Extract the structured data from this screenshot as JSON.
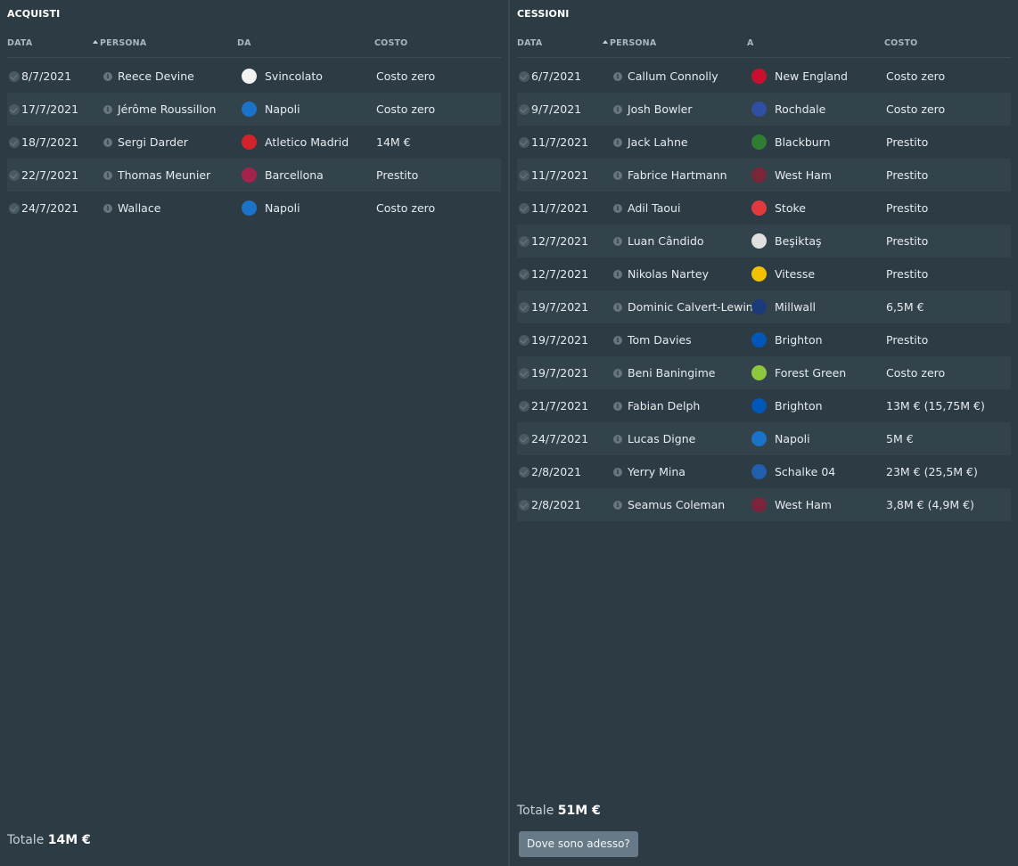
{
  "acquisti": {
    "title": "ACQUISTI",
    "headers": {
      "data": "DATA",
      "persona": "PERSONA",
      "club": "DA",
      "costo": "COSTO"
    },
    "rows": [
      {
        "date": "8/7/2021",
        "person": "Reece Devine",
        "club": "Svincolato",
        "crest": "#f2f2f2",
        "cost": "Costo zero"
      },
      {
        "date": "17/7/2021",
        "person": "Jérôme Roussillon",
        "club": "Napoli",
        "crest": "#1a73c9",
        "cost": "Costo zero"
      },
      {
        "date": "18/7/2021",
        "person": "Sergi Darder",
        "club": "Atletico Madrid",
        "crest": "#d2232a",
        "cost": "14M €"
      },
      {
        "date": "22/7/2021",
        "person": "Thomas Meunier",
        "club": "Barcellona",
        "crest": "#a3234c",
        "cost": "Prestito"
      },
      {
        "date": "24/7/2021",
        "person": "Wallace",
        "club": "Napoli",
        "crest": "#1a73c9",
        "cost": "Costo zero"
      }
    ],
    "total_label": "Totale",
    "total_value": "14M €"
  },
  "cessioni": {
    "title": "CESSIONI",
    "headers": {
      "data": "DATA",
      "persona": "PERSONA",
      "club": "A",
      "costo": "COSTO"
    },
    "rows": [
      {
        "date": "6/7/2021",
        "person": "Callum Connolly",
        "club": "New England",
        "crest": "#c8102e",
        "cost": "Costo zero"
      },
      {
        "date": "9/7/2021",
        "person": "Josh Bowler",
        "club": "Rochdale",
        "crest": "#2e4fa3",
        "cost": "Costo zero"
      },
      {
        "date": "11/7/2021",
        "person": "Jack Lahne",
        "club": "Blackburn",
        "crest": "#2e7d32",
        "cost": "Prestito"
      },
      {
        "date": "11/7/2021",
        "person": "Fabrice Hartmann",
        "club": "West Ham",
        "crest": "#7a263a",
        "cost": "Prestito"
      },
      {
        "date": "11/7/2021",
        "person": "Adil Taoui",
        "club": "Stoke",
        "crest": "#e03a3e",
        "cost": "Prestito"
      },
      {
        "date": "12/7/2021",
        "person": "Luan Cândido",
        "club": "Beşiktaş",
        "crest": "#e0e0e0",
        "cost": "Prestito"
      },
      {
        "date": "12/7/2021",
        "person": "Nikolas Nartey",
        "club": "Vitesse",
        "crest": "#f2c200",
        "cost": "Prestito"
      },
      {
        "date": "19/7/2021",
        "person": "Dominic Calvert-Lewin",
        "club": "Millwall",
        "crest": "#1a3a7a",
        "cost": "6,5M €"
      },
      {
        "date": "19/7/2021",
        "person": "Tom Davies",
        "club": "Brighton",
        "crest": "#0057b8",
        "cost": "Prestito"
      },
      {
        "date": "19/7/2021",
        "person": "Beni Baningime",
        "club": "Forest Green",
        "crest": "#8dc63f",
        "cost": "Costo zero"
      },
      {
        "date": "21/7/2021",
        "person": "Fabian Delph",
        "club": "Brighton",
        "crest": "#0057b8",
        "cost": "13M € (15,75M €)"
      },
      {
        "date": "24/7/2021",
        "person": "Lucas Digne",
        "club": "Napoli",
        "crest": "#1a73c9",
        "cost": "5M €"
      },
      {
        "date": "2/8/2021",
        "person": "Yerry Mina",
        "club": "Schalke 04",
        "crest": "#1f5fae",
        "cost": "23M € (25,5M €)"
      },
      {
        "date": "2/8/2021",
        "person": "Seamus Coleman",
        "club": "West Ham",
        "crest": "#7a263a",
        "cost": "3,8M € (4,9M €)"
      }
    ],
    "total_label": "Totale",
    "total_value": "51M €",
    "button_label": "Dove sono adesso?"
  }
}
